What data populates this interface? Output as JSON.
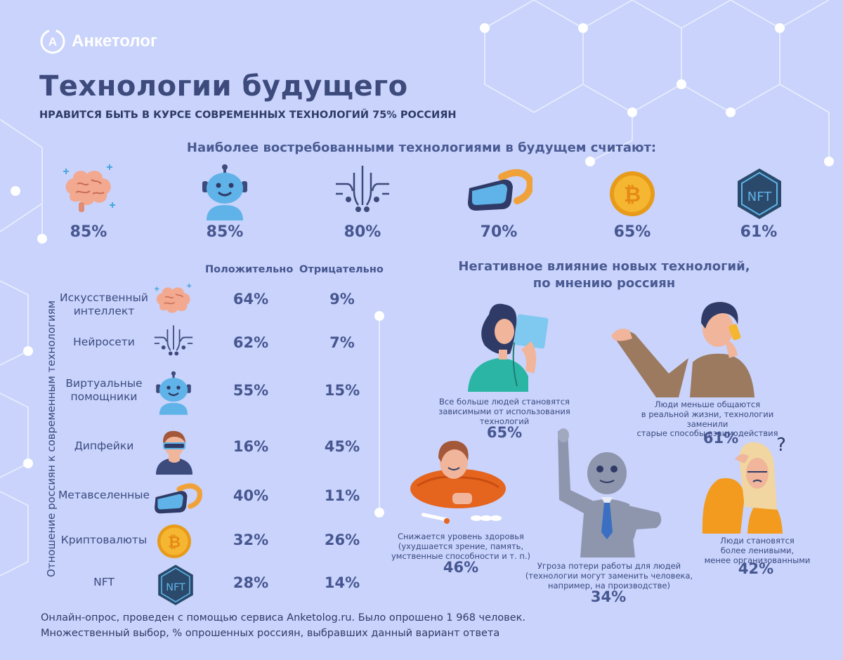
{
  "brand": {
    "name": "Анкетолог"
  },
  "title": "Технологии будущего",
  "subtitle": "НРАВИТСЯ БЫТЬ В КУРСЕ СОВРЕМЕННЫХ ТЕХНОЛОГИЙ 75% РОССИЯН",
  "top": {
    "heading": "Наиболее востребованными технологиями в будущем считают:",
    "items": [
      {
        "icon": "brain-icon",
        "value": "85%"
      },
      {
        "icon": "robot-icon",
        "value": "85%"
      },
      {
        "icon": "neural-network-icon",
        "value": "80%"
      },
      {
        "icon": "vr-headset-icon",
        "value": "70%"
      },
      {
        "icon": "bitcoin-icon",
        "value": "65%"
      },
      {
        "icon": "nft-icon",
        "value": "61%"
      }
    ]
  },
  "attitude": {
    "side_label": "Отношение россиян к современным технологиям",
    "col_positive": "Положительно",
    "col_negative": "Отрицательно",
    "rows": [
      {
        "label": "Искусственный интеллект",
        "positive": "64%",
        "negative": "9%",
        "icon": "brain-icon"
      },
      {
        "label": "Нейросети",
        "positive": "62%",
        "negative": "7%",
        "icon": "neural-network-icon"
      },
      {
        "label": "Виртуальные помощники",
        "positive": "55%",
        "negative": "15%",
        "icon": "robot-icon"
      },
      {
        "label": "Дипфейки",
        "positive": "16%",
        "negative": "45%",
        "icon": "deepfake-person-icon"
      },
      {
        "label": "Метавселенные",
        "positive": "40%",
        "negative": "11%",
        "icon": "vr-headset-icon"
      },
      {
        "label": "Криптовалюты",
        "positive": "32%",
        "negative": "26%",
        "icon": "bitcoin-icon"
      },
      {
        "label": "NFT",
        "positive": "28%",
        "negative": "14%",
        "icon": "nft-icon"
      }
    ]
  },
  "negative": {
    "heading_line1": "Негативное влияние новых технологий,",
    "heading_line2": "по мнению россиян",
    "items": [
      {
        "caption1": "Все больше людей становятся",
        "caption2": "зависимыми от использования",
        "caption3": "технологий",
        "value": "65%"
      },
      {
        "caption1": "Люди меньше общаются",
        "caption2": "в реальной жизни, технологии заменили",
        "caption3": "старые способы взаимодействия",
        "value": "61%"
      },
      {
        "caption1": "Снижается уровень здоровья",
        "caption2": "(ухудшается зрение, память,",
        "caption3": "умственные способности и т. п.)",
        "value": "46%"
      },
      {
        "caption1": "Угроза потери работы для людей",
        "caption2": "(технологии могут заменить человека,",
        "caption3": "например, на производстве)",
        "value": "34%"
      },
      {
        "caption1": "Люди становятся",
        "caption2": "более ленивыми,",
        "caption3": "менее организованными",
        "value": "42%"
      }
    ]
  },
  "footer": {
    "line1": "Онлайн-опрос, проведен с помощью сервиса Anketolog.ru. Было опрошено 1 968 человек.",
    "line2": "Множественный выбор, % опрошенных россиян, выбравших данный вариант ответа"
  },
  "colors": {
    "background": "#c9d3fb",
    "heading": "#3d4a7c",
    "value": "#465690",
    "brain": "#f2a98f",
    "robot": "#5fb3e8",
    "bitcoin": "#f5a623",
    "nft": "#2b4a6b",
    "vr": "#f0a23a"
  }
}
